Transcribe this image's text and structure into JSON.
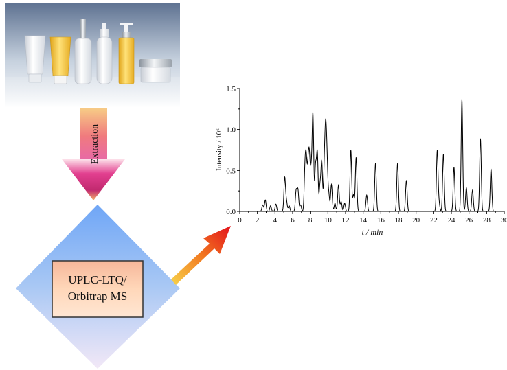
{
  "diagram": {
    "extraction_label": "Extraction",
    "instrument_label_line1": "UPLC-LTQ/",
    "instrument_label_line2": "Orbitrap MS",
    "colors": {
      "arrow_top": "#f7cd86",
      "arrow_mid": "#f07a7e",
      "arrow_bottom": "#e86aa5",
      "diamond_top": "#6fa6f6",
      "diamond_bottom": "#f2e8f7",
      "box_top": "#f6b79a",
      "box_bottom": "#ffe6d3",
      "diag_arrow_head": "#e3121b",
      "diag_arrow_tail": "#f7d34b"
    }
  },
  "chart_data": {
    "type": "line",
    "title": "",
    "xlabel": "t / min",
    "ylabel": "Intensity / 10⁶",
    "xlim": [
      0,
      30
    ],
    "ylim": [
      0,
      1.5
    ],
    "x_ticks": [
      "0",
      "2",
      "4",
      "6",
      "8",
      "10",
      "12",
      "14",
      "16",
      "18",
      "20",
      "22",
      "24",
      "26",
      "28",
      "30"
    ],
    "y_ticks": [
      "0.0",
      "0.5",
      "1.0",
      "1.5"
    ],
    "grid": false,
    "legend": "none",
    "peaks": [
      {
        "t": 2.6,
        "height": 0.08
      },
      {
        "t": 2.9,
        "height": 0.14
      },
      {
        "t": 3.5,
        "height": 0.07
      },
      {
        "t": 4.1,
        "height": 0.09
      },
      {
        "t": 5.1,
        "height": 0.41
      },
      {
        "t": 5.3,
        "height": 0.12
      },
      {
        "t": 5.6,
        "height": 0.07
      },
      {
        "t": 6.4,
        "height": 0.25
      },
      {
        "t": 6.6,
        "height": 0.26
      },
      {
        "t": 6.9,
        "height": 0.08
      },
      {
        "t": 7.4,
        "height": 0.49
      },
      {
        "t": 7.55,
        "height": 0.56
      },
      {
        "t": 7.75,
        "height": 0.48
      },
      {
        "t": 7.9,
        "height": 0.6
      },
      {
        "t": 8.1,
        "height": 0.45
      },
      {
        "t": 8.3,
        "height": 1.17
      },
      {
        "t": 8.6,
        "height": 0.53
      },
      {
        "t": 8.8,
        "height": 0.7
      },
      {
        "t": 9.1,
        "height": 0.3
      },
      {
        "t": 9.3,
        "height": 0.6
      },
      {
        "t": 9.6,
        "height": 0.5
      },
      {
        "t": 9.75,
        "height": 0.87
      },
      {
        "t": 9.9,
        "height": 0.55
      },
      {
        "t": 10.1,
        "height": 0.2
      },
      {
        "t": 10.4,
        "height": 0.33
      },
      {
        "t": 10.8,
        "height": 0.1
      },
      {
        "t": 11.2,
        "height": 0.32
      },
      {
        "t": 11.5,
        "height": 0.12
      },
      {
        "t": 11.9,
        "height": 0.1
      },
      {
        "t": 12.6,
        "height": 0.75
      },
      {
        "t": 12.9,
        "height": 0.2
      },
      {
        "t": 13.2,
        "height": 0.66
      },
      {
        "t": 14.4,
        "height": 0.2
      },
      {
        "t": 15.4,
        "height": 0.59
      },
      {
        "t": 17.9,
        "height": 0.59
      },
      {
        "t": 18.9,
        "height": 0.38
      },
      {
        "t": 22.4,
        "height": 0.74
      },
      {
        "t": 22.6,
        "height": 0.1
      },
      {
        "t": 23.1,
        "height": 0.7
      },
      {
        "t": 24.3,
        "height": 0.54
      },
      {
        "t": 25.2,
        "height": 1.37
      },
      {
        "t": 25.7,
        "height": 0.29
      },
      {
        "t": 26.4,
        "height": 0.26
      },
      {
        "t": 27.3,
        "height": 0.89
      },
      {
        "t": 28.5,
        "height": 0.52
      }
    ]
  }
}
